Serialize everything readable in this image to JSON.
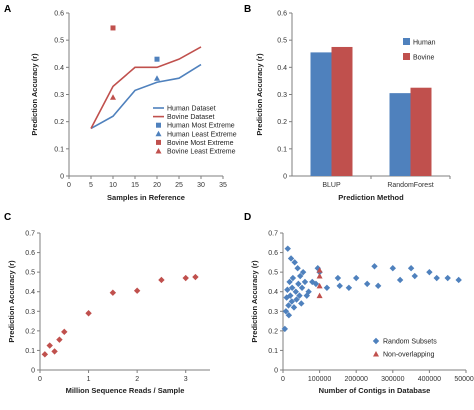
{
  "colors": {
    "human": "#4f81bd",
    "bovine": "#c0504d",
    "axis": "#7f7f7f"
  },
  "chart_data": [
    {
      "panel": "A",
      "type": "line",
      "xlabel": "Samples in Reference",
      "ylabel": "Prediction Accuracy (r)",
      "xlim": [
        0,
        35
      ],
      "ylim": [
        0,
        0.6
      ],
      "xticks": [
        0,
        5,
        10,
        15,
        20,
        25,
        30,
        35
      ],
      "yticks": [
        0,
        0.1,
        0.2,
        0.3,
        0.4,
        0.5,
        0.6
      ],
      "yticklabels": [
        "0",
        "0.1",
        "0.2",
        "0.3",
        "0.4",
        "0.5",
        "0.6"
      ],
      "grid": false,
      "legend_position": "bottom-right",
      "series": [
        {
          "name": "Human Dataset",
          "kind": "line",
          "color": "#4f81bd",
          "x": [
            5,
            10,
            15,
            20,
            25,
            30
          ],
          "y": [
            0.175,
            0.22,
            0.315,
            0.345,
            0.36,
            0.41
          ]
        },
        {
          "name": "Bovine Dataset",
          "kind": "line",
          "color": "#c0504d",
          "x": [
            5,
            10,
            15,
            20,
            25,
            30
          ],
          "y": [
            0.175,
            0.33,
            0.4,
            0.4,
            0.43,
            0.475
          ]
        },
        {
          "name": "Human Most Extreme",
          "kind": "square",
          "color": "#4f81bd",
          "x": [
            20
          ],
          "y": [
            0.43
          ]
        },
        {
          "name": "Human Least Extreme",
          "kind": "triangle",
          "color": "#4f81bd",
          "x": [
            20
          ],
          "y": [
            0.36
          ]
        },
        {
          "name": "Bovine Most Extreme",
          "kind": "square",
          "color": "#c0504d",
          "x": [
            10
          ],
          "y": [
            0.545
          ]
        },
        {
          "name": "Bovine Least Extreme",
          "kind": "triangle",
          "color": "#c0504d",
          "x": [
            10
          ],
          "y": [
            0.29
          ]
        }
      ]
    },
    {
      "panel": "B",
      "type": "bar",
      "xlabel": "Prediction Method",
      "ylabel": "Prediction Accuracy (r)",
      "ylim": [
        0,
        0.6
      ],
      "yticks": [
        0,
        0.1,
        0.2,
        0.3,
        0.4,
        0.5,
        0.6
      ],
      "yticklabels": [
        "0",
        "0.1",
        "0.2",
        "0.3",
        "0.4",
        "0.5",
        "0.6"
      ],
      "grid": false,
      "legend_position": "top-right",
      "categories": [
        "BLUP",
        "RandomForest"
      ],
      "series": [
        {
          "name": "Human",
          "color": "#4f81bd",
          "values": [
            0.455,
            0.305
          ]
        },
        {
          "name": "Bovine",
          "color": "#c0504d",
          "values": [
            0.475,
            0.325
          ]
        }
      ]
    },
    {
      "panel": "C",
      "type": "scatter",
      "xlabel": "Million Sequence Reads / Sample",
      "ylabel": "Prediction Accuracy (r)",
      "xlim": [
        0,
        3.5
      ],
      "ylim": [
        0,
        0.7
      ],
      "xticks": [
        0,
        1,
        2,
        3
      ],
      "yticks": [
        0,
        0.1,
        0.2,
        0.3,
        0.4,
        0.5,
        0.6,
        0.7
      ],
      "yticklabels": [
        "0",
        "0.1",
        "0.2",
        "0.3",
        "0.4",
        "0.5",
        "0.6",
        "0.7"
      ],
      "grid": false,
      "series": [
        {
          "kind": "diamond",
          "color": "#c0504d",
          "x": [
            0.1,
            0.2,
            0.3,
            0.4,
            0.5,
            1.0,
            1.5,
            2.0,
            2.5,
            3.0,
            3.2
          ],
          "y": [
            0.08,
            0.125,
            0.095,
            0.155,
            0.195,
            0.29,
            0.395,
            0.405,
            0.46,
            0.47,
            0.475
          ]
        }
      ]
    },
    {
      "panel": "D",
      "type": "scatter",
      "xlabel": "Number of Contigs in Database",
      "ylabel": "Prediction Accuracy (r)",
      "xlim": [
        0,
        500000
      ],
      "ylim": [
        0,
        0.7
      ],
      "xticks": [
        0,
        100000,
        200000,
        300000,
        400000,
        500000
      ],
      "yticks": [
        0,
        0.1,
        0.2,
        0.3,
        0.4,
        0.5,
        0.6,
        0.7
      ],
      "yticklabels": [
        "0",
        "0.1",
        "0.2",
        "0.3",
        "0.4",
        "0.5",
        "0.6",
        "0.7"
      ],
      "grid": false,
      "legend_position": "bottom-right",
      "series": [
        {
          "name": "Random Subsets",
          "kind": "diamond",
          "color": "#4f81bd",
          "x": [
            5000,
            8000,
            10000,
            12000,
            13000,
            15000,
            16000,
            18000,
            20000,
            22000,
            24000,
            25000,
            27000,
            30000,
            32000,
            35000,
            37000,
            40000,
            42000,
            45000,
            47000,
            50000,
            52000,
            55000,
            60000,
            65000,
            70000,
            80000,
            90000,
            95000,
            100000,
            120000,
            150000,
            155000,
            180000,
            200000,
            230000,
            250000,
            260000,
            300000,
            320000,
            350000,
            360000,
            400000,
            420000,
            450000,
            480000
          ],
          "y": [
            0.21,
            0.3,
            0.37,
            0.41,
            0.62,
            0.33,
            0.28,
            0.45,
            0.38,
            0.57,
            0.35,
            0.42,
            0.47,
            0.32,
            0.55,
            0.4,
            0.36,
            0.52,
            0.44,
            0.38,
            0.48,
            0.34,
            0.42,
            0.5,
            0.45,
            0.38,
            0.4,
            0.45,
            0.44,
            0.52,
            0.5,
            0.42,
            0.47,
            0.43,
            0.42,
            0.47,
            0.44,
            0.53,
            0.43,
            0.52,
            0.46,
            0.52,
            0.48,
            0.5,
            0.47,
            0.47,
            0.46
          ]
        },
        {
          "name": "Non-overlapping",
          "kind": "triangle",
          "color": "#c0504d",
          "x": [
            100000,
            100000,
            100000,
            100000
          ],
          "y": [
            0.38,
            0.43,
            0.48,
            0.51
          ]
        }
      ]
    }
  ]
}
